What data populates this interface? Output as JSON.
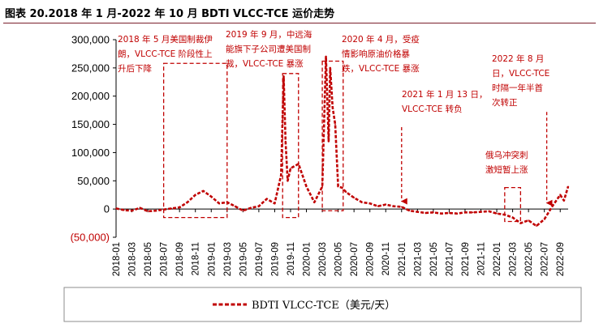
{
  "title": "图表 20.2018 年 1 月-2022 年 10 月 BDTI VLCC-TCE 运价走势",
  "chart_data": {
    "type": "line",
    "title": "图表 20.2018 年 1 月-2022 年 10 月 BDTI VLCC-TCE 运价走势",
    "xlabel": "",
    "ylabel": "",
    "ylim": [
      -50000,
      300000
    ],
    "yticks": [
      300000,
      250000,
      200000,
      150000,
      100000,
      50000,
      0,
      -50000
    ],
    "ytick_labels": [
      "300,000",
      "250,000",
      "200,000",
      "150,000",
      "100,000",
      "50,000",
      "0",
      "(50,000)"
    ],
    "xtick_labels": [
      "2018-01",
      "2018-03",
      "2018-05",
      "2018-07",
      "2018-09",
      "2018-11",
      "2019-01",
      "2019-03",
      "2019-05",
      "2019-07",
      "2019-09",
      "2019-11",
      "2020-01",
      "2020-03",
      "2020-05",
      "2020-07",
      "2020-09",
      "2020-11",
      "2021-01",
      "2021-03",
      "2021-05",
      "2021-07",
      "2021-09",
      "2021-11",
      "2022-01",
      "2022-03",
      "2022-05",
      "2022-07",
      "2022-09"
    ],
    "series": [
      {
        "name": "BDTI VLCC-TCE（美元/天）",
        "color": "#c00000",
        "style": "dashed",
        "x": [
          "2018-01",
          "2018-02",
          "2018-03",
          "2018-04",
          "2018-05",
          "2018-06",
          "2018-07",
          "2018-08",
          "2018-09",
          "2018-10",
          "2018-11",
          "2018-12",
          "2019-01",
          "2019-02",
          "2019-03",
          "2019-04",
          "2019-05",
          "2019-06",
          "2019-07",
          "2019-08",
          "2019-09",
          "2019-09-25",
          "2019-10-05",
          "2019-10-12",
          "2019-10-20",
          "2019-11",
          "2019-12",
          "2020-01",
          "2020-02",
          "2020-03",
          "2020-03-15",
          "2020-03-25",
          "2020-04",
          "2020-04-10",
          "2020-04-20",
          "2020-05",
          "2020-05-15",
          "2020-06",
          "2020-07",
          "2020-08",
          "2020-09",
          "2020-10",
          "2020-11",
          "2020-12",
          "2021-01",
          "2021-02",
          "2021-03",
          "2021-04",
          "2021-05",
          "2021-06",
          "2021-07",
          "2021-08",
          "2021-09",
          "2021-10",
          "2021-11",
          "2021-12",
          "2022-01",
          "2022-02",
          "2022-03",
          "2022-04",
          "2022-05",
          "2022-06",
          "2022-07",
          "2022-08",
          "2022-09",
          "2022-09-15",
          "2022-10"
        ],
        "values": [
          1000,
          -2000,
          -3000,
          2000,
          -4000,
          -3000,
          -1000,
          1000,
          3000,
          12000,
          25000,
          32000,
          22000,
          10000,
          12000,
          5000,
          -3000,
          2000,
          5000,
          18000,
          10000,
          60000,
          235000,
          120000,
          50000,
          72000,
          80000,
          40000,
          12000,
          40000,
          270000,
          120000,
          250000,
          180000,
          150000,
          40000,
          38000,
          30000,
          20000,
          12000,
          10000,
          5000,
          8000,
          5000,
          4000,
          -3000,
          -5000,
          -7000,
          -6000,
          -8000,
          -7000,
          -8000,
          -6000,
          -6000,
          -5000,
          -4000,
          -8000,
          -10000,
          -15000,
          -25000,
          -20000,
          -30000,
          -18000,
          5000,
          25000,
          15000,
          40000
        ]
      }
    ],
    "annotations": [
      {
        "text": [
          "2018 年 5 月美国制裁伊",
          "朗，VLCC-TCE 阶段性上",
          "升后下降"
        ]
      },
      {
        "text": [
          "2019 年 9 月，中远海",
          "能旗下子公司遭美国制",
          "裁，VLCC-TCE 暴涨"
        ]
      },
      {
        "text": [
          "2020 年 4 月，受疫",
          "情影响原油价格暴",
          "跌，VLCC-TCE 暴涨"
        ]
      },
      {
        "text": [
          "2021 年 1 月 13 日，",
          "VLCC-TCE 转负"
        ]
      },
      {
        "text": [
          "2022 年 8 月",
          "日，VLCC-TCE",
          "时隔一年半首",
          "次转正"
        ]
      },
      {
        "text": [
          "俄乌冲突刺",
          "激短暂上涨"
        ]
      }
    ],
    "grid": false,
    "legend": "bottom"
  }
}
